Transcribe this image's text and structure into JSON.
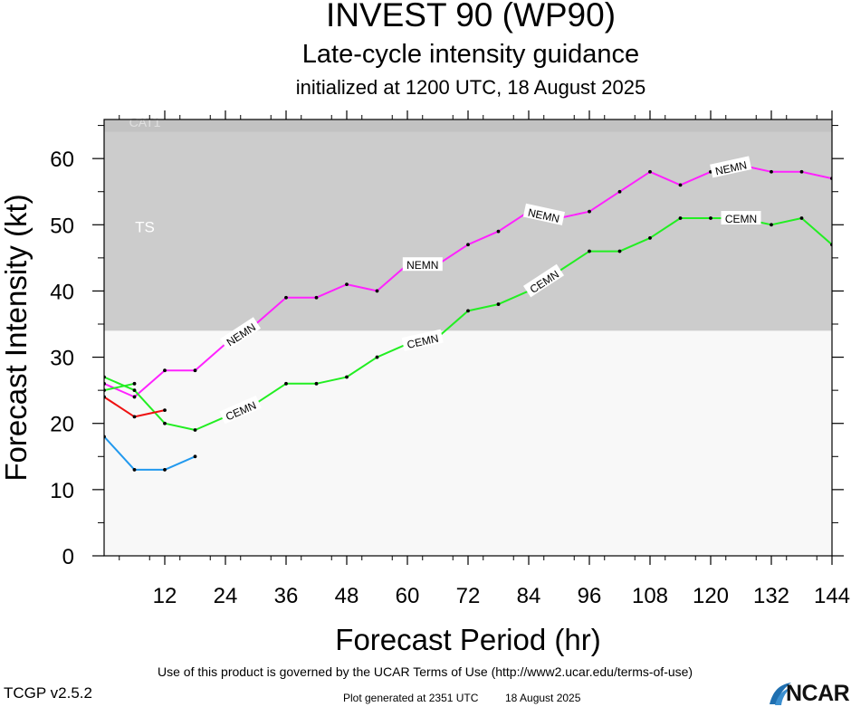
{
  "titles": {
    "main": "INVEST 90 (WP90)",
    "sub": "Late-cycle intensity guidance",
    "init": "initialized at 1200 UTC, 18 August 2025"
  },
  "footer": {
    "terms": "Use of this product is governed by the UCAR Terms of Use (http://www2.ucar.edu/terms-of-use)",
    "version": "TCGP v2.5.2",
    "generated": "Plot generated at 2351 UTC",
    "generated_date": "18 August 2025",
    "logo_text": "NCAR"
  },
  "chart_data": {
    "type": "line",
    "xlabel": "Forecast Period (hr)",
    "ylabel": "Forecast Intensity (kt)",
    "xlim": [
      0,
      144
    ],
    "ylim": [
      0,
      65
    ],
    "xticks": [
      12,
      24,
      36,
      48,
      60,
      72,
      84,
      96,
      108,
      120,
      132,
      144
    ],
    "yticks": [
      0,
      10,
      20,
      30,
      40,
      50,
      60
    ],
    "bands": [
      {
        "label": "TS",
        "from": 34,
        "to": 64,
        "color": "#cccccc"
      },
      {
        "label": "CAT1",
        "from": 64,
        "to": 83,
        "color": "#c2c2c2"
      }
    ],
    "series": [
      {
        "name": "NEMN",
        "color": "#ff22ff",
        "x": [
          0,
          6,
          12,
          18,
          24,
          30,
          36,
          42,
          48,
          54,
          60,
          66,
          72,
          78,
          84,
          90,
          96,
          102,
          108,
          114,
          120,
          126,
          132,
          138,
          144
        ],
        "y": [
          26,
          24,
          28,
          28,
          32,
          35,
          39,
          39,
          41,
          40,
          44,
          44,
          47,
          49,
          52,
          51,
          52,
          55,
          58,
          56,
          58,
          59,
          58,
          58,
          57
        ],
        "labels_at": [
          27,
          63,
          87,
          124
        ]
      },
      {
        "name": "CEMN",
        "color": "#22ee22",
        "x": [
          0,
          6,
          12,
          18,
          24,
          30,
          36,
          42,
          48,
          54,
          60,
          66,
          72,
          78,
          84,
          90,
          96,
          102,
          108,
          114,
          120,
          126,
          132,
          138,
          144
        ],
        "y": [
          27,
          25,
          20,
          19,
          21,
          23,
          26,
          26,
          27,
          30,
          32,
          33,
          37,
          38,
          40,
          43,
          46,
          46,
          48,
          51,
          51,
          51,
          50,
          51,
          47
        ],
        "labels_at": [
          27,
          63,
          87,
          126
        ]
      },
      {
        "name": "",
        "color": "#ee1111",
        "x": [
          0,
          6,
          12
        ],
        "y": [
          24,
          21,
          22
        ]
      },
      {
        "name": "",
        "color": "#2299ee",
        "x": [
          0,
          6,
          12,
          18
        ],
        "y": [
          18,
          13,
          13,
          15
        ]
      },
      {
        "name": "",
        "color": "#22ee22",
        "x": [
          0,
          6
        ],
        "y": [
          25,
          26
        ]
      }
    ]
  }
}
